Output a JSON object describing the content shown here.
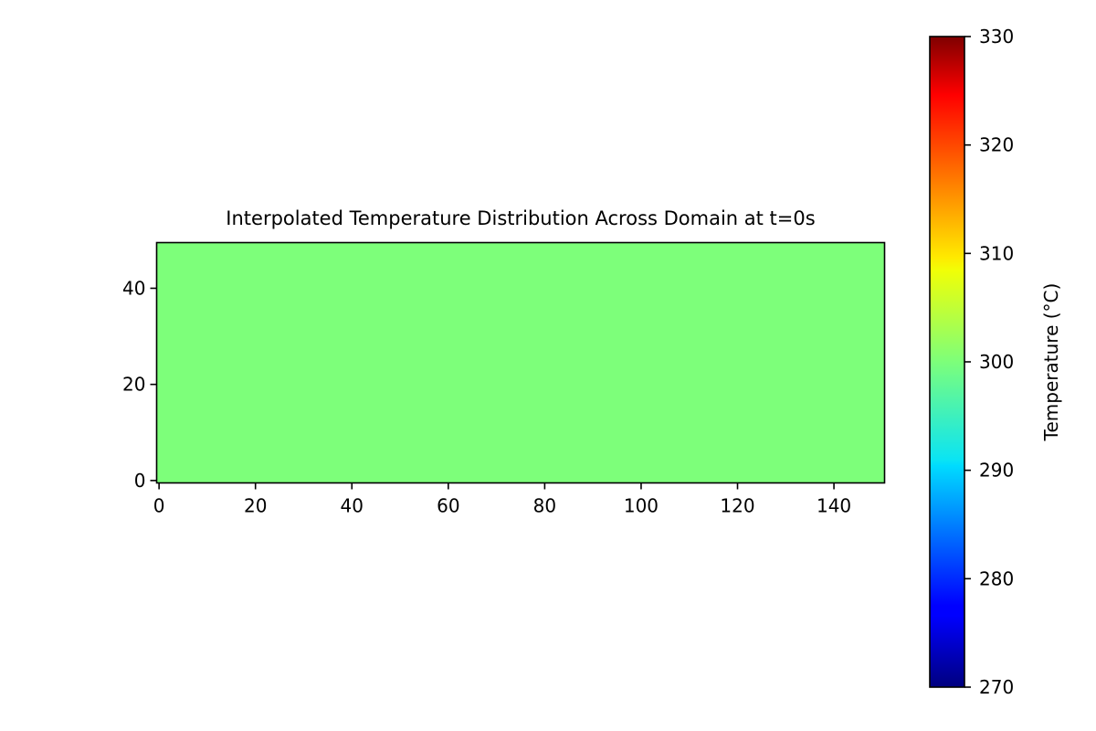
{
  "chart_data": {
    "type": "heatmap",
    "title": "Interpolated Temperature Distribution Across Domain at t=0s",
    "xlabel": "",
    "ylabel": "",
    "xlim": [
      -0.5,
      150.5
    ],
    "ylim": [
      -0.5,
      49.5
    ],
    "x_ticks": [
      0,
      20,
      40,
      60,
      80,
      100,
      120,
      140
    ],
    "y_ticks": [
      0,
      20,
      40
    ],
    "grid": false,
    "colormap": "jet",
    "field_value": 300,
    "field_color": "#7dff7a",
    "colorbar": {
      "label": "Temperature (°C)",
      "range": [
        270,
        330
      ],
      "ticks": [
        270,
        280,
        290,
        300,
        310,
        320,
        330
      ],
      "placement": "right"
    }
  }
}
